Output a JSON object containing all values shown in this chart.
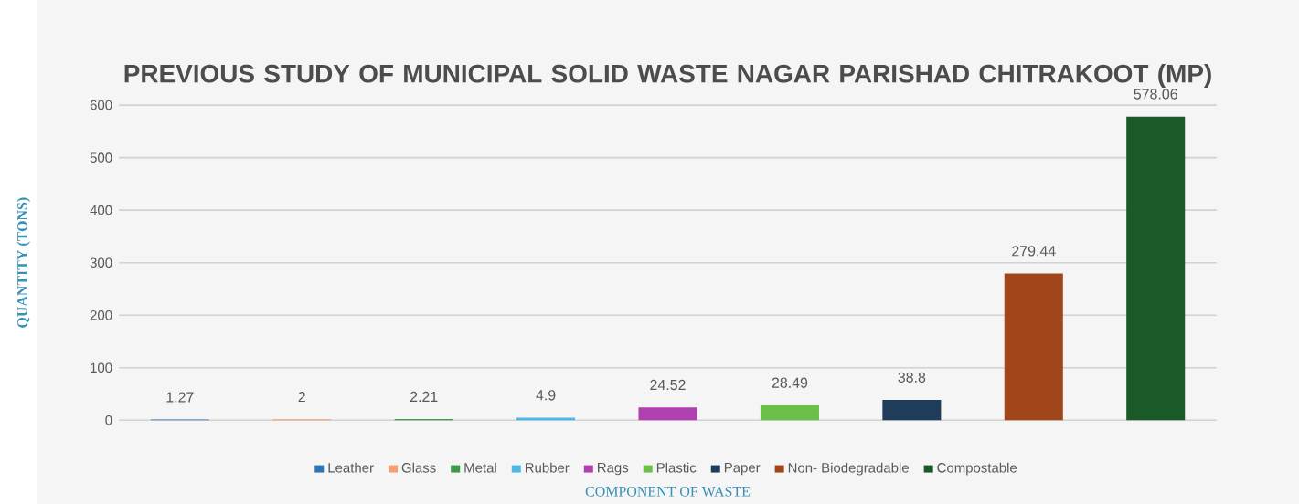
{
  "chart_data": {
    "type": "bar",
    "title": "PREVIOUS STUDY OF MUNICIPAL SOLID WASTE NAGAR PARISHAD CHITRAKOOT (MP)",
    "xlabel": "COMPONENT OF WASTE",
    "ylabel": "QUANTITY (TONS)",
    "categories": [
      null,
      null,
      null,
      null,
      null,
      null,
      null,
      null,
      null
    ],
    "series": [
      {
        "name": "Leather",
        "color": "#2e75b6",
        "values": [
          1.27,
          null,
          null,
          null,
          null,
          null,
          null,
          null,
          null
        ]
      },
      {
        "name": "Glass",
        "color": "#f4a070",
        "values": [
          null,
          2,
          null,
          null,
          null,
          null,
          null,
          null,
          null
        ]
      },
      {
        "name": "Metal",
        "color": "#3a9a48",
        "values": [
          null,
          null,
          2.21,
          null,
          null,
          null,
          null,
          null,
          null
        ]
      },
      {
        "name": "Rubber",
        "color": "#4db8e8",
        "values": [
          null,
          null,
          null,
          4.9,
          null,
          null,
          null,
          null,
          null
        ]
      },
      {
        "name": "Rags",
        "color": "#b040b0",
        "values": [
          null,
          null,
          null,
          null,
          24.52,
          null,
          null,
          null,
          null
        ]
      },
      {
        "name": "Plastic",
        "color": "#6cc04a",
        "values": [
          null,
          null,
          null,
          null,
          null,
          28.49,
          null,
          null,
          null
        ]
      },
      {
        "name": "Paper",
        "color": "#1f3d5a",
        "values": [
          null,
          null,
          null,
          null,
          null,
          null,
          38.8,
          null,
          null
        ]
      },
      {
        "name": "Non- Biodegradable",
        "color": "#a0461a",
        "values": [
          null,
          null,
          null,
          null,
          null,
          null,
          null,
          279.44,
          null
        ]
      },
      {
        "name": "Compostable",
        "color": "#1a5a28",
        "values": [
          null,
          null,
          null,
          null,
          null,
          null,
          null,
          null,
          578.06
        ]
      }
    ],
    "ylim": [
      0,
      600
    ],
    "yticks": [
      0,
      100,
      200,
      300,
      400,
      500,
      600
    ],
    "grid": "y",
    "legend": "bottom",
    "data_labels": true
  }
}
